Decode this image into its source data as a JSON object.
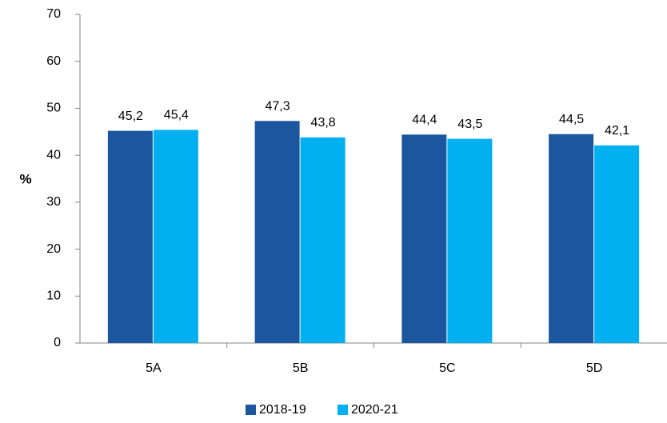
{
  "chart_data": {
    "type": "bar",
    "y_label": "%",
    "categories": [
      "5A",
      "5B",
      "5C",
      "5D"
    ],
    "series": [
      {
        "name": "2018-19",
        "color": "#1b569e",
        "values": [
          45.2,
          47.3,
          44.4,
          44.5
        ],
        "value_labels": [
          "45,2",
          "47,3",
          "44,4",
          "44,5"
        ]
      },
      {
        "name": "2020-21",
        "color": "#00b0f0",
        "values": [
          45.4,
          43.8,
          43.5,
          42.1
        ],
        "value_labels": [
          "45,4",
          "43,8",
          "43,5",
          "42,1"
        ]
      }
    ],
    "ylim": [
      0,
      70
    ],
    "yticks": [
      0,
      10,
      20,
      30,
      40,
      50,
      60,
      70
    ],
    "grid": false,
    "legend": "bottom"
  }
}
